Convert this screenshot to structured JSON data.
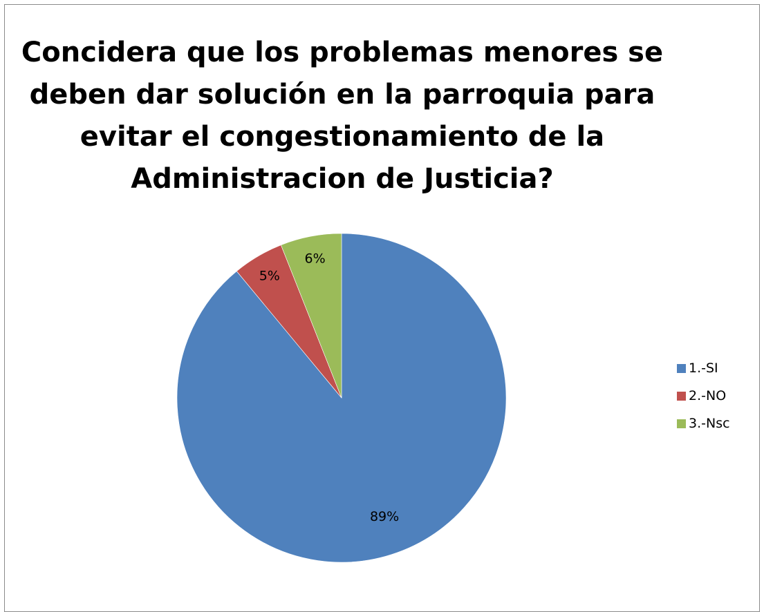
{
  "chart_data": {
    "type": "pie",
    "title_lines": [
      "Concidera que los problemas menores se",
      "deben dar solución en la parroquia para",
      "evitar el congestionamiento de la",
      "Administracion de Justicia?"
    ],
    "categories": [
      "1.-SI",
      "2.-NO",
      "3.-Nsc"
    ],
    "values": [
      89,
      5,
      6
    ],
    "data_labels": [
      "89%",
      "5%",
      "6%"
    ],
    "colors": [
      "#4F81BD",
      "#C0504D",
      "#9BBB59"
    ],
    "legend_position": "right",
    "start_angle": "12 o'clock",
    "direction": "clockwise"
  }
}
